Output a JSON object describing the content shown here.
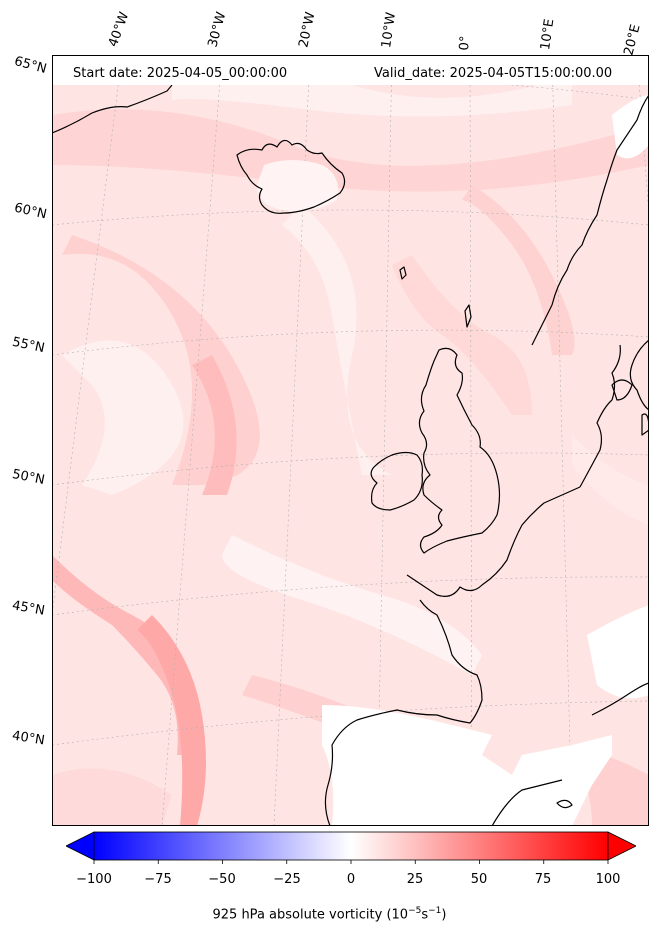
{
  "header": {
    "start_date": "Start date: 2025-04-05_00:00:00",
    "valid_date": "Valid_date: 2025-04-05T15:00:00.00"
  },
  "longitude_labels": [
    "40°W",
    "30°W",
    "20°W",
    "10°W",
    "0°",
    "10°E",
    "20°E"
  ],
  "latitude_labels": [
    "65°N",
    "60°N",
    "55°N",
    "50°N",
    "45°N",
    "40°N"
  ],
  "colorbar": {
    "ticks": [
      "−100",
      "−75",
      "−50",
      "−25",
      "0",
      "25",
      "50",
      "75",
      "100"
    ],
    "label_prefix": "925 hPa absolute vorticity (10",
    "label_exp1": "−5",
    "label_mid": "s",
    "label_exp2": "−1",
    "label_suffix": ")",
    "min_color": "#0000ff",
    "mid_color": "#ffffff",
    "max_color": "#ff0000",
    "range": [
      -100,
      100
    ]
  },
  "map": {
    "field_colors": [
      "#ffffff",
      "#fff0f0",
      "#ffe1e1",
      "#ffd2d2",
      "#ffc3c3",
      "#ffb0b0"
    ],
    "land_fill": "#ffffff",
    "coastline_color": "#000000",
    "gridline_color": "#b0b0b0"
  }
}
